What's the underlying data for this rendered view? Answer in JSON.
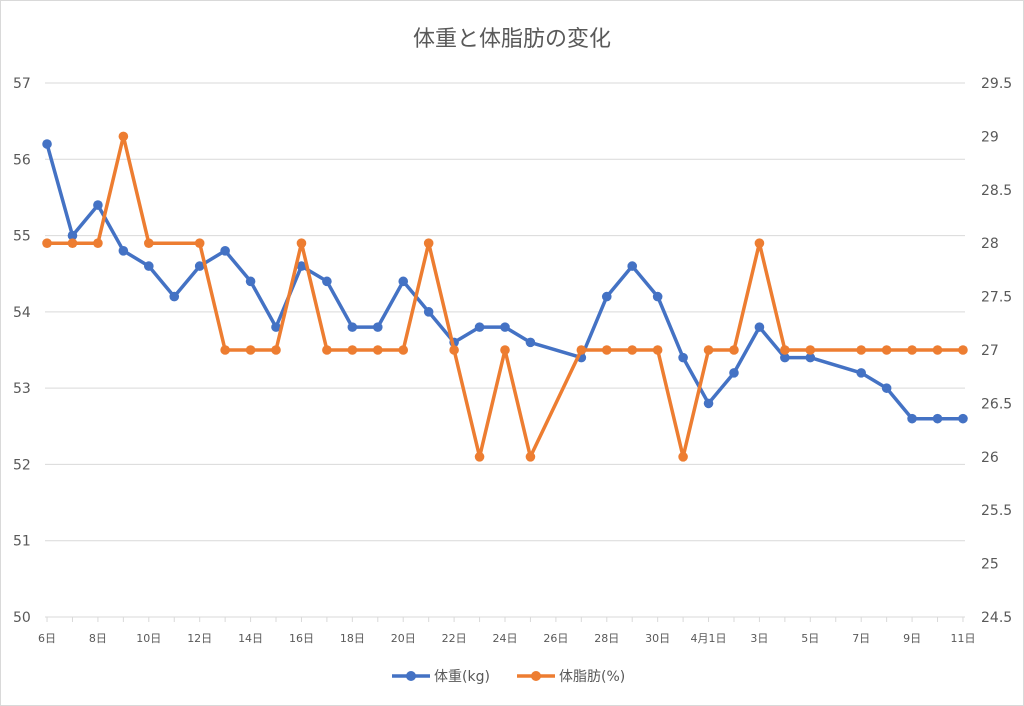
{
  "chart_data": {
    "type": "line",
    "title": "体重と体脂肪の変化",
    "xlabel": "",
    "ylabel": "",
    "y_left_lim": [
      50,
      57
    ],
    "y_left_ticks": [
      50,
      51,
      52,
      53,
      54,
      55,
      56,
      57
    ],
    "y_right_lim": [
      24.5,
      29.5
    ],
    "y_right_ticks": [
      "24.5",
      "25",
      "25.5",
      "26",
      "26.5",
      "27",
      "27.5",
      "28",
      "28.5",
      "29",
      "29.5"
    ],
    "x_labels": [
      "6日",
      "8日",
      "10日",
      "12日",
      "14日",
      "16日",
      "18日",
      "20日",
      "22日",
      "24日",
      "26日",
      "28日",
      "30日",
      "4月1日",
      "3日",
      "5日",
      "7日",
      "9日",
      "11日"
    ],
    "grid": true,
    "legend_position": "bottom",
    "series": [
      {
        "name": "体重(kg)",
        "axis": "left",
        "color": "#4472C4",
        "points": [
          {
            "x": 6,
            "y": 56.2
          },
          {
            "x": 7,
            "y": 55.0
          },
          {
            "x": 8,
            "y": 55.4
          },
          {
            "x": 9,
            "y": 54.8
          },
          {
            "x": 10,
            "y": 54.6
          },
          {
            "x": 11,
            "y": 54.2
          },
          {
            "x": 12,
            "y": 54.6
          },
          {
            "x": 13,
            "y": 54.8
          },
          {
            "x": 14,
            "y": 54.4
          },
          {
            "x": 15,
            "y": 53.8
          },
          {
            "x": 16,
            "y": 54.6
          },
          {
            "x": 17,
            "y": 54.4
          },
          {
            "x": 18,
            "y": 53.8
          },
          {
            "x": 19,
            "y": 53.8
          },
          {
            "x": 20,
            "y": 54.4
          },
          {
            "x": 21,
            "y": 54.0
          },
          {
            "x": 22,
            "y": 53.6
          },
          {
            "x": 23,
            "y": 53.8
          },
          {
            "x": 24,
            "y": 53.8
          },
          {
            "x": 25,
            "y": 53.6
          },
          {
            "x": 27,
            "y": 53.4
          },
          {
            "x": 28,
            "y": 54.2
          },
          {
            "x": 29,
            "y": 54.6
          },
          {
            "x": 30,
            "y": 54.2
          },
          {
            "x": 31,
            "y": 53.4
          },
          {
            "x": 32,
            "y": 52.8
          },
          {
            "x": 33,
            "y": 53.2
          },
          {
            "x": 34,
            "y": 53.8
          },
          {
            "x": 35,
            "y": 53.4
          },
          {
            "x": 36,
            "y": 53.4
          },
          {
            "x": 38,
            "y": 53.2
          },
          {
            "x": 39,
            "y": 53.0
          },
          {
            "x": 40,
            "y": 52.6
          },
          {
            "x": 41,
            "y": 52.6
          },
          {
            "x": 42,
            "y": 52.6
          }
        ]
      },
      {
        "name": "体脂肪(%)",
        "axis": "right",
        "color": "#ED7D31",
        "points": [
          {
            "x": 6,
            "y": 28
          },
          {
            "x": 7,
            "y": 28
          },
          {
            "x": 8,
            "y": 28
          },
          {
            "x": 9,
            "y": 29
          },
          {
            "x": 10,
            "y": 28
          },
          {
            "x": 12,
            "y": 28
          },
          {
            "x": 13,
            "y": 27
          },
          {
            "x": 14,
            "y": 27
          },
          {
            "x": 15,
            "y": 27
          },
          {
            "x": 16,
            "y": 28
          },
          {
            "x": 17,
            "y": 27
          },
          {
            "x": 18,
            "y": 27
          },
          {
            "x": 19,
            "y": 27
          },
          {
            "x": 20,
            "y": 27
          },
          {
            "x": 21,
            "y": 28
          },
          {
            "x": 22,
            "y": 27
          },
          {
            "x": 23,
            "y": 26
          },
          {
            "x": 24,
            "y": 27
          },
          {
            "x": 25,
            "y": 26
          },
          {
            "x": 27,
            "y": 27
          },
          {
            "x": 28,
            "y": 27
          },
          {
            "x": 29,
            "y": 27
          },
          {
            "x": 30,
            "y": 27
          },
          {
            "x": 31,
            "y": 26
          },
          {
            "x": 32,
            "y": 27
          },
          {
            "x": 33,
            "y": 27
          },
          {
            "x": 34,
            "y": 28
          },
          {
            "x": 35,
            "y": 27
          },
          {
            "x": 36,
            "y": 27
          },
          {
            "x": 38,
            "y": 27
          },
          {
            "x": 39,
            "y": 27
          },
          {
            "x": 40,
            "y": 27
          },
          {
            "x": 41,
            "y": 27
          },
          {
            "x": 42,
            "y": 27
          }
        ]
      }
    ]
  }
}
